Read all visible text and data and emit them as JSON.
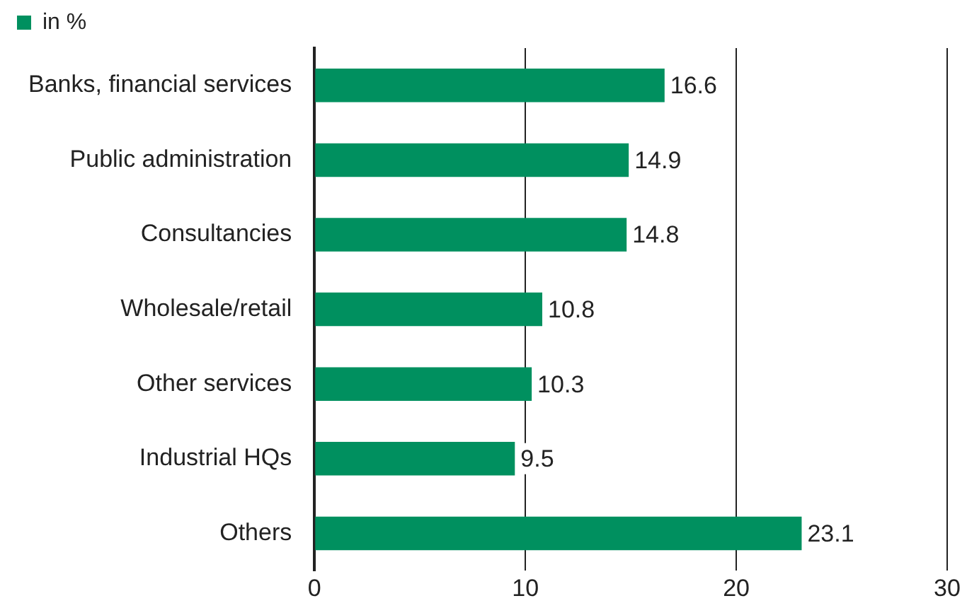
{
  "chart_data": {
    "type": "bar",
    "orientation": "horizontal",
    "categories": [
      "Banks, financial services",
      "Public administration",
      "Consultancies",
      "Wholesale/retail",
      "Other services",
      "Industrial HQs",
      "Others"
    ],
    "series": [
      {
        "name": "in %",
        "color": "#00905f",
        "values": [
          16.6,
          14.9,
          14.8,
          10.8,
          10.3,
          9.5,
          23.1
        ]
      }
    ],
    "xlim": [
      0,
      30
    ],
    "xticks": [
      0,
      10,
      20,
      30
    ],
    "grid": "x",
    "legend": "top left",
    "data_labels": true
  }
}
